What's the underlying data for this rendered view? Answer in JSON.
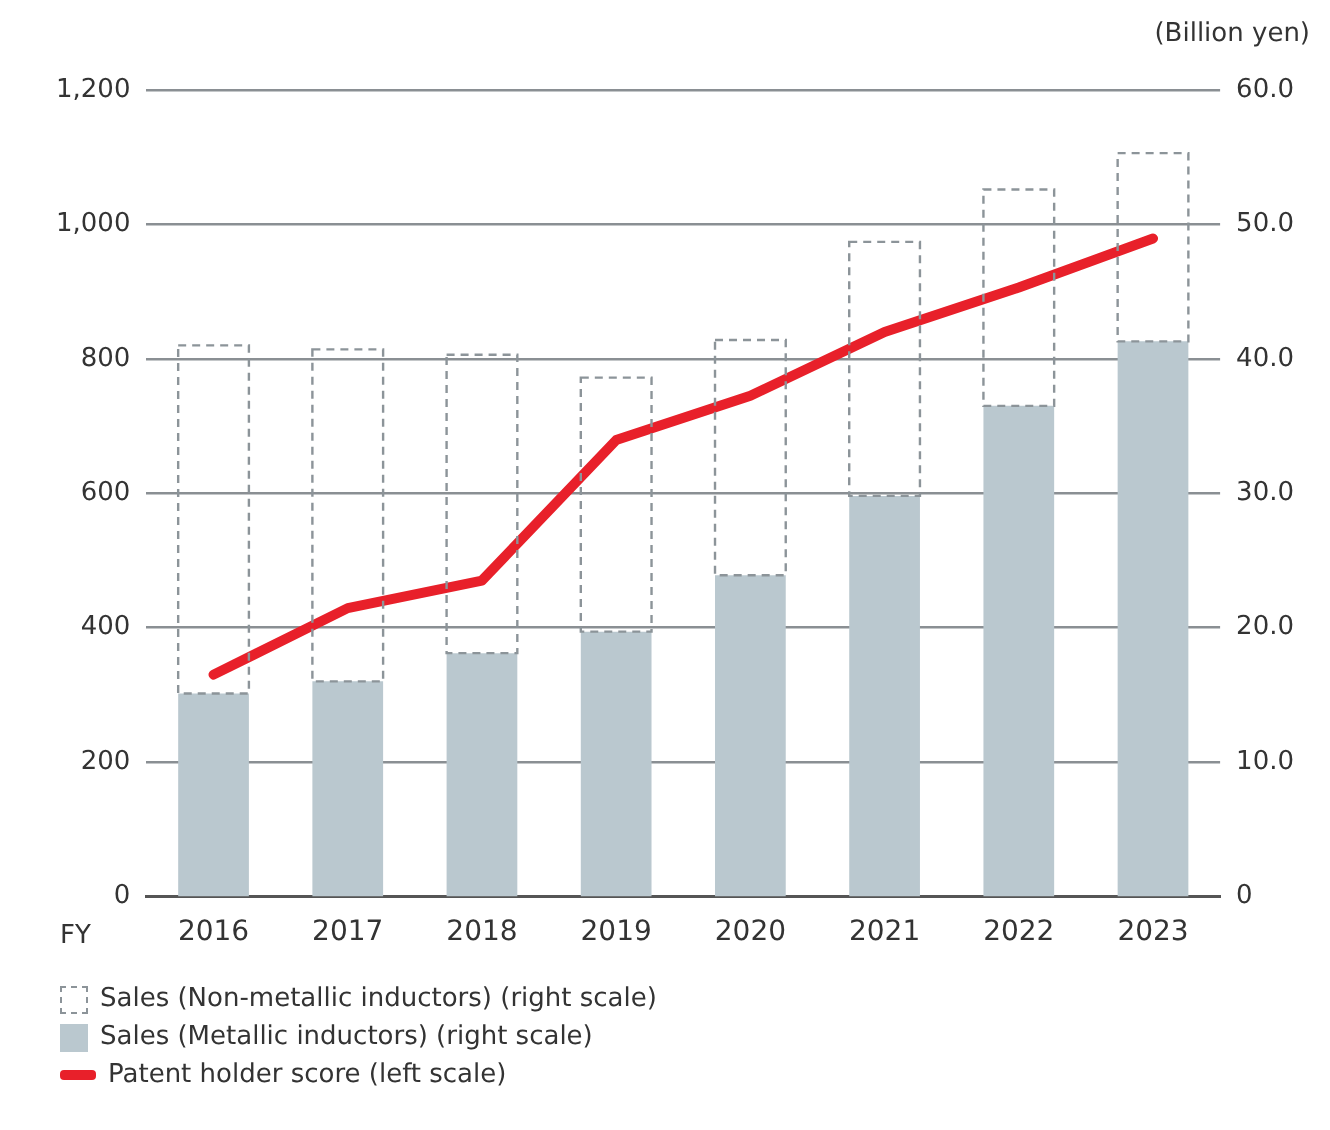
{
  "chart_data": {
    "type": "bar",
    "stacked": true,
    "categories": [
      "2016",
      "2017",
      "2018",
      "2019",
      "2020",
      "2021",
      "2022",
      "2023"
    ],
    "xlabel": "FY",
    "y2label": "(Billion yen)",
    "series": [
      {
        "name": "Sales (Metallic inductors) (right scale)",
        "axis": "y2",
        "color": "#bac8cf",
        "values": [
          15.1,
          16.0,
          18.1,
          19.7,
          23.9,
          29.8,
          36.5,
          41.3
        ]
      },
      {
        "name": "Sales (Non-metallic inductors) (right scale)",
        "axis": "y2",
        "color": "#8c9499",
        "line_style": "dashed",
        "values": [
          25.9,
          24.7,
          22.2,
          18.9,
          17.5,
          18.9,
          16.1,
          14.0
        ]
      },
      {
        "name": "Patent holder score (left scale)",
        "type": "line",
        "color": "#e8202a",
        "line_style": "solid",
        "marker": "none",
        "values": [
          330,
          429,
          470,
          679,
          745,
          840,
          906,
          979
        ]
      }
    ],
    "ylim": [
      0,
      1200
    ],
    "yticks": [
      0,
      200,
      400,
      600,
      800,
      {
        "value": 1000,
        "label": "1,000"
      },
      {
        "value": 1200,
        "label": "1,200"
      }
    ],
    "y2lim": [
      0,
      60
    ],
    "y2ticks": [
      0,
      {
        "value": 10,
        "label": "10.0"
      },
      {
        "value": 20,
        "label": "20.0"
      },
      {
        "value": 30,
        "label": "30.0"
      },
      {
        "value": 40,
        "label": "40.0"
      },
      {
        "value": 50,
        "label": "50.0"
      },
      {
        "value": 60,
        "label": "60.0"
      }
    ],
    "grid": "y",
    "legend": "bottom"
  }
}
